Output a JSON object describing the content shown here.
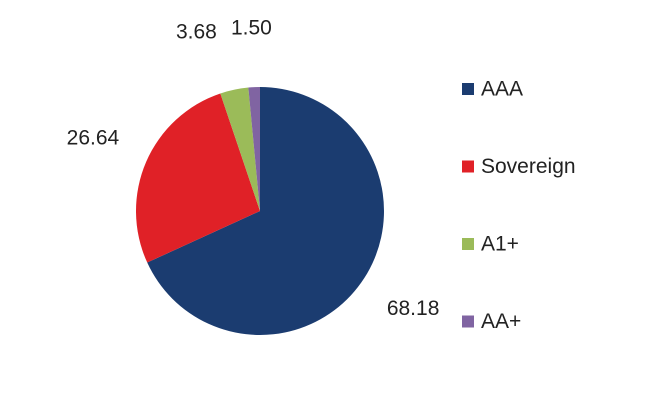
{
  "chart_data": {
    "type": "pie",
    "categories": [
      "AAA",
      "Sovereign",
      "A1+",
      "AA+"
    ],
    "values": [
      68.18,
      26.64,
      3.68,
      1.5
    ],
    "value_labels": [
      "68.18",
      "26.64",
      "3.68",
      "1.50"
    ],
    "colors": [
      "#1b3c70",
      "#e02127",
      "#9bbb59",
      "#8064a2"
    ],
    "legend": "right"
  }
}
